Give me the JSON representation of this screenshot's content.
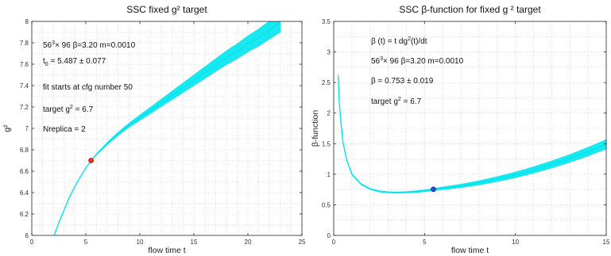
{
  "chart_data": [
    {
      "type": "line",
      "title": "SSC  fixed g² target",
      "xlabel": "flow time t",
      "ylabel": "g²",
      "xlim": [
        0,
        25
      ],
      "ylim": [
        6,
        8
      ],
      "xticks": [
        0,
        5,
        10,
        15,
        20,
        25
      ],
      "yticks": [
        6,
        6.2,
        6.4,
        6.6,
        6.8,
        7,
        7.2,
        7.4,
        7.6,
        7.8,
        8
      ],
      "grid": true,
      "series": [
        {
          "color": "#00e5ee",
          "x": [
            2.0,
            2.5,
            3.0,
            3.5,
            4.0,
            4.5,
            5.0,
            5.5,
            6.0,
            7.0,
            8.0,
            9.0,
            10.0,
            11.0,
            12.0,
            13.0,
            14.0,
            15.0,
            16.0,
            17.0,
            18.0,
            19.0,
            20.0,
            21.0,
            22.0,
            23.0
          ],
          "y": [
            5.98,
            6.12,
            6.24,
            6.36,
            6.46,
            6.55,
            6.63,
            6.7,
            6.76,
            6.86,
            6.95,
            7.03,
            7.1,
            7.17,
            7.24,
            7.31,
            7.38,
            7.45,
            7.52,
            7.59,
            7.66,
            7.72,
            7.79,
            7.85,
            7.92,
            7.99
          ],
          "band_halfwidth": [
            0.0,
            0.0,
            0.0,
            0.0,
            0.0,
            0.0,
            0.0,
            0.0,
            0.005,
            0.01,
            0.015,
            0.02,
            0.025,
            0.03,
            0.035,
            0.04,
            0.045,
            0.05,
            0.055,
            0.06,
            0.065,
            0.07,
            0.075,
            0.08,
            0.085,
            0.09
          ]
        }
      ],
      "marker": {
        "x": 5.487,
        "y": 6.7,
        "color": "#e8332a",
        "stroke": "#a01010"
      }
    },
    {
      "type": "line",
      "title": "SSC  β-function for fixed g ² target",
      "xlabel": "flow time t",
      "ylabel": "β-function",
      "xlim": [
        0,
        15
      ],
      "ylim": [
        0,
        3.5
      ],
      "xticks": [
        0,
        5,
        10,
        15
      ],
      "yticks": [
        0,
        0.5,
        1,
        1.5,
        2,
        2.5,
        3,
        3.5
      ],
      "grid": true,
      "series": [
        {
          "color": "#00e5ee",
          "x": [
            0.25,
            0.3,
            0.4,
            0.5,
            0.7,
            1.0,
            1.5,
            2.0,
            2.5,
            3.0,
            3.5,
            4.0,
            4.5,
            5.0,
            5.5,
            6.0,
            7.0,
            8.0,
            9.0,
            10.0,
            11.0,
            12.0,
            13.0,
            14.0,
            15.0
          ],
          "y": [
            2.6,
            2.2,
            1.85,
            1.55,
            1.25,
            1.0,
            0.84,
            0.76,
            0.72,
            0.705,
            0.7,
            0.705,
            0.715,
            0.73,
            0.75,
            0.77,
            0.81,
            0.86,
            0.92,
            0.99,
            1.07,
            1.16,
            1.26,
            1.37,
            1.49
          ],
          "band_halfwidth": [
            0.04,
            0.02,
            0.01,
            0.01,
            0.01,
            0.01,
            0.01,
            0.01,
            0.01,
            0.01,
            0.01,
            0.012,
            0.014,
            0.016,
            0.019,
            0.022,
            0.028,
            0.034,
            0.04,
            0.046,
            0.052,
            0.058,
            0.064,
            0.07,
            0.076
          ]
        }
      ],
      "marker": {
        "x": 5.487,
        "y": 0.753,
        "color": "#2b4ed8",
        "stroke": "#0a1e80"
      }
    }
  ],
  "annotations_left": [
    {
      "parts": [
        [
          "56",
          ""
        ],
        [
          "3",
          "sup"
        ],
        [
          "× 96   ",
          ""
        ],
        [
          "β",
          ""
        ],
        [
          "=3.20   m=0.0010",
          ""
        ]
      ]
    },
    {
      "parts": [
        [
          "t",
          ""
        ],
        [
          "0",
          "sub"
        ],
        [
          " =  5.487 ± 0.077",
          ""
        ]
      ]
    },
    {
      "parts": [
        [
          "fit starts at cfg number 50",
          ""
        ]
      ]
    },
    {
      "parts": [
        [
          "target g",
          ""
        ],
        [
          "2",
          "sup"
        ],
        [
          " = 6.7",
          ""
        ]
      ]
    },
    {
      "parts": [
        [
          "Nreplica = 2",
          ""
        ]
      ]
    }
  ],
  "annotations_right": [
    {
      "parts": [
        [
          "β",
          ""
        ],
        [
          " (t) = t dg",
          ""
        ],
        [
          "2",
          "sup"
        ],
        [
          "(t)/dt",
          ""
        ]
      ]
    },
    {
      "parts": [
        [
          "56",
          ""
        ],
        [
          "3",
          "sup"
        ],
        [
          "× 96    ",
          ""
        ],
        [
          "β",
          ""
        ],
        [
          "=3.20     m=0.0010",
          ""
        ]
      ]
    },
    {
      "parts": [
        [
          "β",
          ""
        ],
        [
          " = 0.753 ± 0.019",
          ""
        ]
      ]
    },
    {
      "parts": [
        [
          "target g",
          ""
        ],
        [
          "2",
          "sup"
        ],
        [
          " = 6.7",
          ""
        ]
      ]
    }
  ]
}
